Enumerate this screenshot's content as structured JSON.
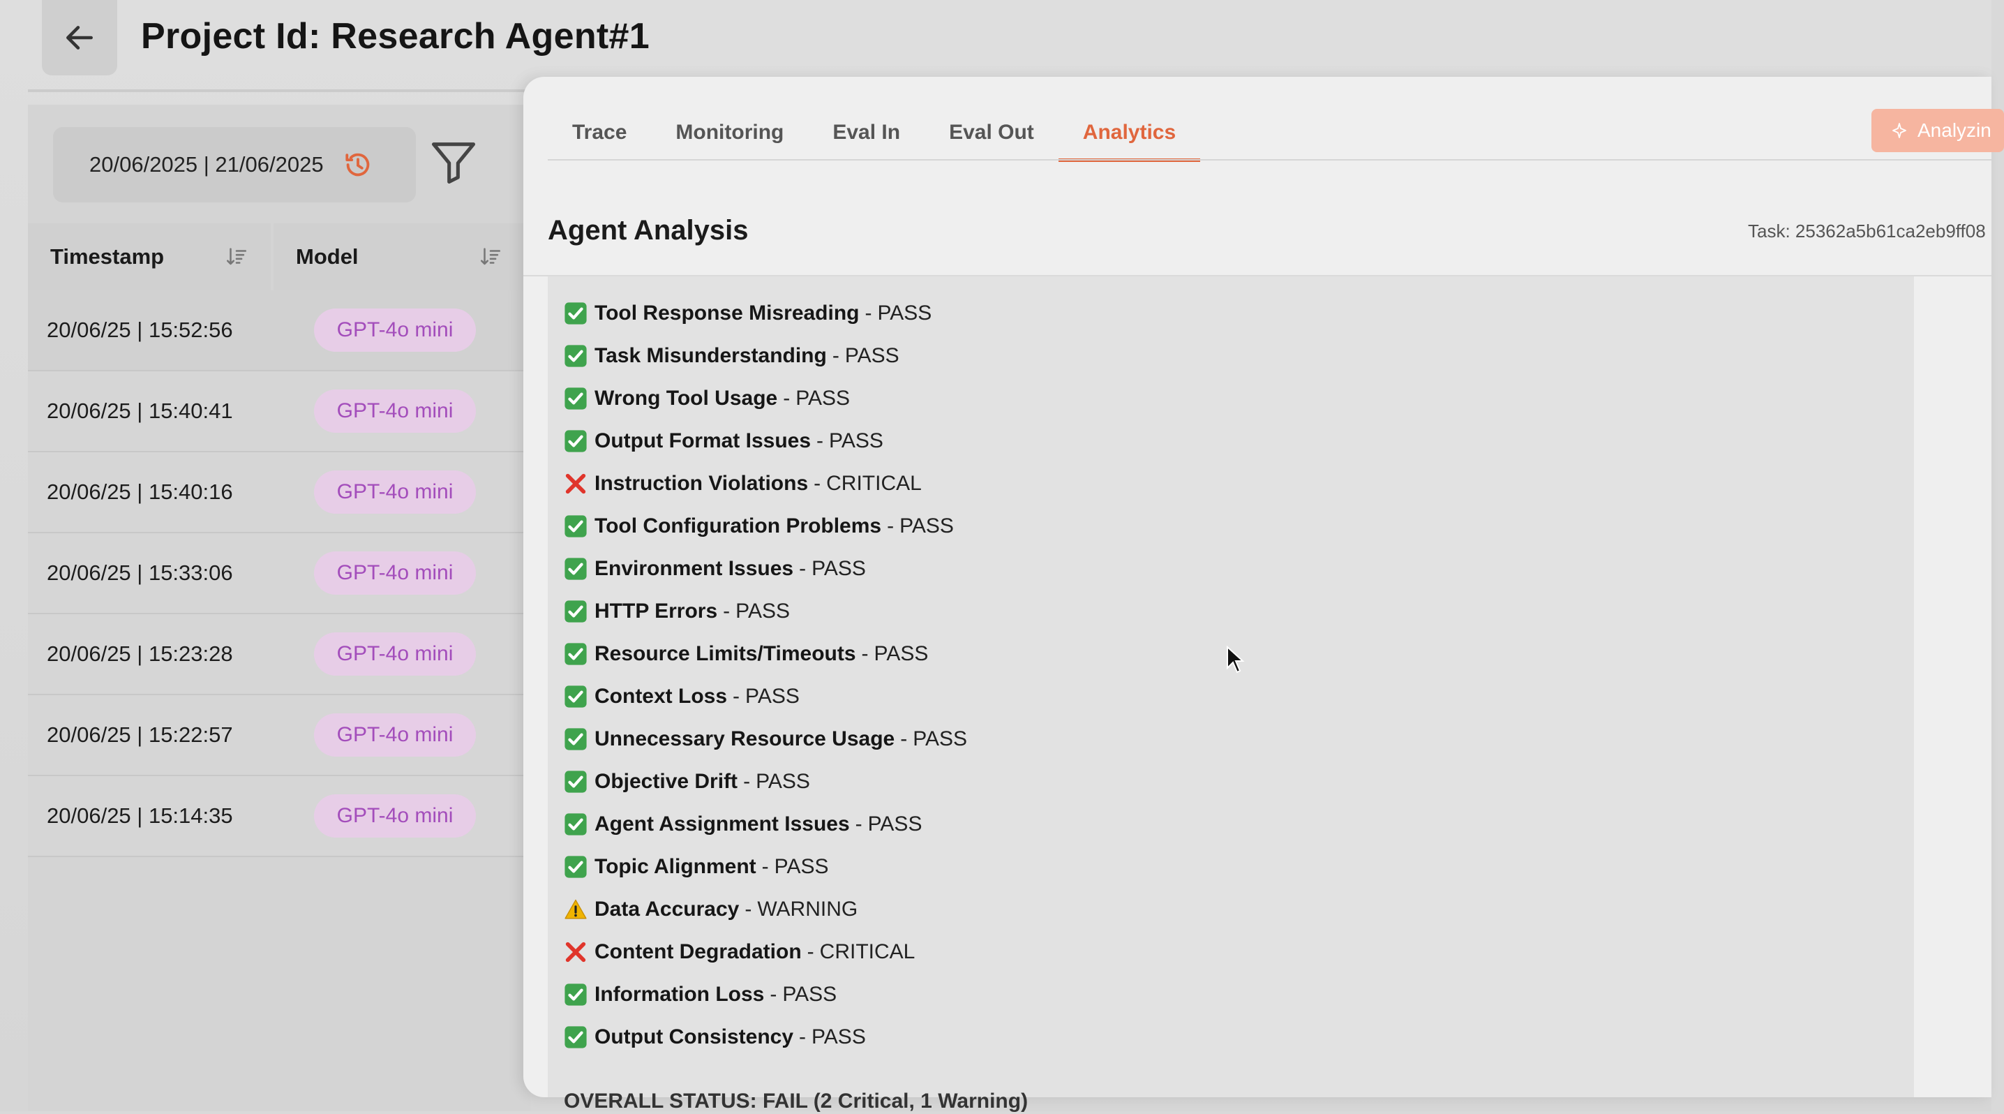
{
  "header": {
    "title": "Project Id: Research Agent#1"
  },
  "filters": {
    "date_range": "20/06/2025 | 21/06/2025"
  },
  "table": {
    "columns": [
      "Timestamp",
      "Model"
    ],
    "rows": [
      {
        "timestamp": "20/06/25 | 15:52:56",
        "model": "GPT-4o mini"
      },
      {
        "timestamp": "20/06/25 | 15:40:41",
        "model": "GPT-4o mini"
      },
      {
        "timestamp": "20/06/25 | 15:40:16",
        "model": "GPT-4o mini"
      },
      {
        "timestamp": "20/06/25 | 15:33:06",
        "model": "GPT-4o mini"
      },
      {
        "timestamp": "20/06/25 | 15:23:28",
        "model": "GPT-4o mini"
      },
      {
        "timestamp": "20/06/25 | 15:22:57",
        "model": "GPT-4o mini"
      },
      {
        "timestamp": "20/06/25 | 15:14:35",
        "model": "GPT-4o mini"
      }
    ]
  },
  "tabs": [
    {
      "label": "Trace",
      "active": false
    },
    {
      "label": "Monitoring",
      "active": false
    },
    {
      "label": "Eval In",
      "active": false
    },
    {
      "label": "Eval Out",
      "active": false
    },
    {
      "label": "Analytics",
      "active": true
    }
  ],
  "analyze_button": {
    "label": "Analyzin"
  },
  "analysis": {
    "title": "Agent Analysis",
    "task_id": "Task: 25362a5b61ca2eb9ff08",
    "items": [
      {
        "name": "Tool Response Misreading",
        "status": "PASS",
        "icon": "check-icon"
      },
      {
        "name": "Task Misunderstanding",
        "status": "PASS",
        "icon": "check-icon"
      },
      {
        "name": "Wrong Tool Usage",
        "status": "PASS",
        "icon": "check-icon"
      },
      {
        "name": "Output Format Issues",
        "status": "PASS",
        "icon": "check-icon"
      },
      {
        "name": "Instruction Violations",
        "status": "CRITICAL",
        "icon": "cross-icon"
      },
      {
        "name": "Tool Configuration Problems",
        "status": "PASS",
        "icon": "check-icon"
      },
      {
        "name": "Environment Issues",
        "status": "PASS",
        "icon": "check-icon"
      },
      {
        "name": "HTTP Errors",
        "status": "PASS",
        "icon": "check-icon"
      },
      {
        "name": "Resource Limits/Timeouts",
        "status": "PASS",
        "icon": "check-icon"
      },
      {
        "name": "Context Loss",
        "status": "PASS",
        "icon": "check-icon"
      },
      {
        "name": "Unnecessary Resource Usage",
        "status": "PASS",
        "icon": "check-icon"
      },
      {
        "name": "Objective Drift",
        "status": "PASS",
        "icon": "check-icon"
      },
      {
        "name": "Agent Assignment Issues",
        "status": "PASS",
        "icon": "check-icon"
      },
      {
        "name": "Topic Alignment",
        "status": "PASS",
        "icon": "check-icon"
      },
      {
        "name": "Data Accuracy",
        "status": "WARNING",
        "icon": "warning-icon"
      },
      {
        "name": "Content Degradation",
        "status": "CRITICAL",
        "icon": "cross-icon"
      },
      {
        "name": "Information Loss",
        "status": "PASS",
        "icon": "check-icon"
      },
      {
        "name": "Output Consistency",
        "status": "PASS",
        "icon": "check-icon"
      }
    ],
    "overall_status_partial": "OVERALL STATUS: FAIL (2 Critical, 1 Warning)"
  },
  "colors": {
    "accent": "#e0663d",
    "pill_bg": "#e7cde7",
    "pill_text": "#a34dbb",
    "pass_green": "#3fa34d",
    "critical_red": "#e0352b",
    "warning_amber": "#f0b400"
  }
}
